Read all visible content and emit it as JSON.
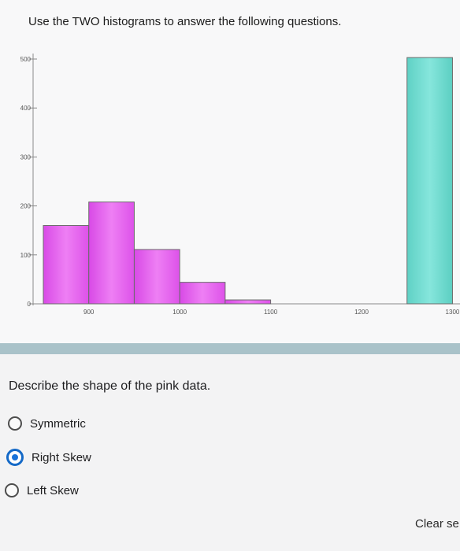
{
  "instructions": "Use the TWO histograms to answer the following questions.",
  "question": "Describe the shape of the pink data.",
  "options": [
    {
      "label": "Symmetric",
      "selected": false
    },
    {
      "label": "Right Skew",
      "selected": true
    },
    {
      "label": "Left Skew",
      "selected": false
    }
  ],
  "clear_label": "Clear se",
  "colors": {
    "pink": "#e85ef0",
    "teal": "#6ad8cc",
    "divider": "#a9c2c9",
    "radio_selected": "#1a73d9"
  },
  "chart_data": {
    "type": "bar",
    "series": [
      {
        "color": "pink",
        "bins": [
          [
            850,
            900,
            160
          ],
          [
            900,
            950,
            208
          ],
          [
            950,
            1000,
            111
          ],
          [
            1000,
            1050,
            44
          ],
          [
            1050,
            1100,
            8
          ]
        ]
      },
      {
        "color": "teal",
        "bins": [
          [
            1250,
            1300,
            503
          ]
        ]
      }
    ],
    "xticks": [
      900,
      1000,
      1100,
      1200,
      1300
    ],
    "yticks": [
      0,
      100,
      200,
      300,
      400,
      500
    ],
    "xlim": [
      850,
      1310
    ],
    "ylim": [
      0,
      500
    ]
  }
}
